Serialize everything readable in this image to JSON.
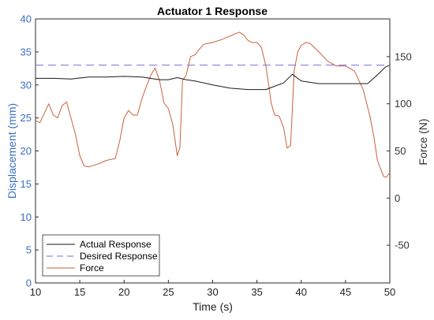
{
  "chart_data": {
    "type": "line",
    "title": "Actuator 1 Response",
    "xlabel": "Time (s)",
    "ylabel_left": "Displacement (mm)",
    "ylabel_right": "Force (N)",
    "xlim": [
      10,
      50
    ],
    "ylim_left": [
      0,
      40
    ],
    "ylim_right": [
      -90,
      190
    ],
    "xticks": [
      10,
      15,
      20,
      25,
      30,
      35,
      40,
      45,
      50
    ],
    "yticks_left": [
      0,
      5,
      10,
      15,
      20,
      25,
      30,
      35,
      40
    ],
    "yticks_right": [
      -50,
      0,
      50,
      100,
      150
    ],
    "grid": false,
    "legend_position": "bottom-left",
    "colors": {
      "left_axis": "#3b6fbf",
      "right_axis": "#333333",
      "actual": "#1a1a1a",
      "desired": "#7b6cd9",
      "force": "#c8623c"
    },
    "series": [
      {
        "name": "Actual Response",
        "axis": "left",
        "style": "solid",
        "x": [
          10,
          12,
          14,
          16,
          18,
          20,
          22,
          24,
          25,
          26,
          27,
          28,
          30,
          32,
          34,
          36,
          37,
          38,
          39,
          40,
          42,
          44,
          46,
          47.5,
          48.5,
          49.5,
          50
        ],
        "y": [
          31.0,
          31.0,
          30.9,
          31.2,
          31.2,
          31.3,
          31.2,
          30.8,
          30.8,
          31.1,
          30.8,
          30.6,
          30.0,
          29.5,
          29.3,
          29.3,
          29.8,
          30.3,
          31.6,
          30.6,
          30.2,
          30.2,
          30.2,
          30.2,
          31.4,
          32.7,
          33.0
        ]
      },
      {
        "name": "Desired Response",
        "axis": "left",
        "style": "dashed",
        "x": [
          10,
          50
        ],
        "y": [
          33.0,
          33.0
        ]
      },
      {
        "name": "Force",
        "axis": "right",
        "style": "solid",
        "x": [
          10,
          10.5,
          11,
          11.5,
          12,
          12.5,
          13,
          13.5,
          14,
          14.5,
          15,
          15.5,
          16,
          17,
          18,
          19,
          19.5,
          20,
          20.5,
          21,
          21.5,
          22,
          22.5,
          23,
          23.5,
          24,
          24.5,
          25,
          25.5,
          26,
          26.3,
          26.6,
          27,
          27.5,
          28,
          28.5,
          29,
          30,
          31,
          32,
          32.5,
          33,
          33.5,
          34,
          34.5,
          35,
          35.5,
          36,
          36.3,
          36.6,
          37,
          37.5,
          38,
          38.4,
          38.8,
          39.2,
          39.6,
          40,
          40.5,
          41,
          42,
          43,
          44,
          45,
          46,
          46.5,
          47,
          47.4,
          47.8,
          48.2,
          48.6,
          49,
          49.3,
          49.6,
          50
        ],
        "y": [
          82,
          80,
          90,
          100,
          88,
          85,
          98,
          102,
          85,
          68,
          45,
          34,
          33,
          36,
          40,
          42,
          60,
          85,
          93,
          88,
          88,
          105,
          118,
          130,
          138,
          125,
          101,
          95,
          78,
          45,
          54,
          125,
          130,
          150,
          152,
          158,
          163,
          165,
          168,
          172,
          174,
          176,
          173,
          167,
          165,
          165,
          160,
          140,
          122,
          101,
          88,
          87,
          75,
          53,
          56,
          135,
          155,
          162,
          165,
          164,
          155,
          145,
          140,
          140,
          135,
          125,
          115,
          100,
          85,
          65,
          40,
          30,
          23,
          22,
          27
        ]
      }
    ]
  }
}
